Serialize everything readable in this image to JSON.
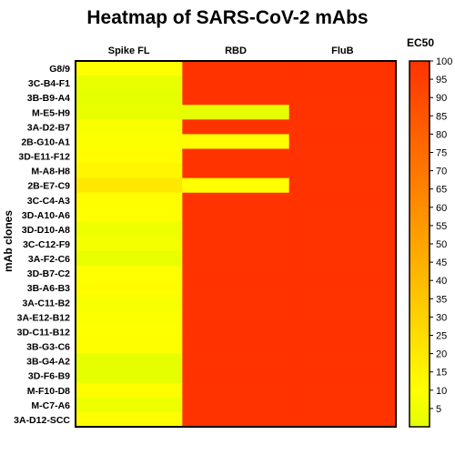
{
  "chart_data": {
    "type": "heatmap",
    "title": "Heatmap of SARS-CoV-2 mAbs",
    "xlabel": "",
    "ylabel": "mAb clones",
    "colorbar_title": "EC50",
    "columns": [
      "Spike FL",
      "RBD",
      "FluB"
    ],
    "rows": [
      "G8/9",
      "3C-B4-F1",
      "3B-B9-A4",
      "M-E5-H9",
      "3A-D2-B7",
      "2B-G10-A1",
      "3D-E11-F12",
      "M-A8-H8",
      "2B-E7-C9",
      "3C-C4-A3",
      "3D-A10-A6",
      "3D-D10-A8",
      "3C-C12-F9",
      "3A-F2-C6",
      "3D-B7-C2",
      "3B-A6-B3",
      "3A-C11-B2",
      "3A-E12-B12",
      "3D-C11-B12",
      "3B-G3-C6",
      "3B-G4-A2",
      "3D-F6-B9",
      "M-F10-D8",
      "M-C7-A6",
      "3A-D12-SCC"
    ],
    "values": [
      [
        10,
        100,
        100
      ],
      [
        2,
        100,
        100
      ],
      [
        1,
        100,
        100
      ],
      [
        2,
        1,
        100
      ],
      [
        8,
        100,
        100
      ],
      [
        9,
        11,
        100
      ],
      [
        11,
        100,
        100
      ],
      [
        14,
        100,
        100
      ],
      [
        20,
        10,
        100
      ],
      [
        11,
        100,
        100
      ],
      [
        10,
        100,
        100
      ],
      [
        4,
        100,
        100
      ],
      [
        6,
        100,
        100
      ],
      [
        2,
        100,
        100
      ],
      [
        10,
        100,
        100
      ],
      [
        11,
        100,
        100
      ],
      [
        7,
        100,
        100
      ],
      [
        9,
        100,
        100
      ],
      [
        10,
        100,
        100
      ],
      [
        11,
        100,
        100
      ],
      [
        1,
        100,
        100
      ],
      [
        1,
        100,
        100
      ],
      [
        11,
        100,
        100
      ],
      [
        4,
        100,
        100
      ],
      [
        11,
        100,
        100
      ]
    ],
    "colorbar_range": [
      0,
      100
    ],
    "colorbar_ticks": [
      5,
      10,
      15,
      20,
      25,
      30,
      35,
      40,
      45,
      50,
      55,
      60,
      65,
      70,
      75,
      80,
      85,
      90,
      95,
      100
    ],
    "colorscale": [
      "#e3ff00",
      "#ffff00",
      "#ff3300"
    ],
    "grid": false
  }
}
